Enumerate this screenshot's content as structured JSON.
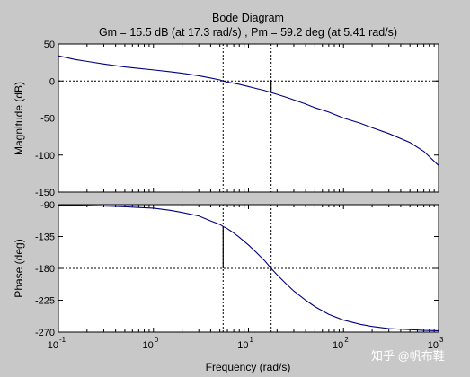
{
  "title": "Bode Diagram",
  "subtitle": "Gm = 15.5 dB (at 17.3 rad/s) ,  Pm = 59.2 deg (at 5.41 rad/s)",
  "watermark": "知乎 @帆布鞋",
  "colors": {
    "figure_bg": "#c8c8c8",
    "axes_bg": "#ffffff",
    "curve": "#000080",
    "marker": "#000000"
  },
  "chart_data": [
    {
      "type": "line",
      "name": "magnitude",
      "xlabel": "",
      "ylabel": "Magnitude (dB)",
      "xscale": "log",
      "xlim": [
        0.1,
        1000
      ],
      "ylim": [
        -150,
        50
      ],
      "yticks": [
        50,
        0,
        -50,
        -100,
        -150
      ],
      "ytick_labels": [
        "50",
        "0",
        "-50",
        "-100",
        "-150"
      ],
      "grid": false,
      "series": [
        {
          "x": [
            0.1,
            0.15,
            0.2,
            0.3,
            0.5,
            0.7,
            1,
            1.5,
            2,
            3,
            4,
            5,
            5.41,
            6,
            7,
            8,
            10,
            12,
            15,
            17.3,
            20,
            25,
            30,
            40,
            50,
            70,
            100,
            150,
            200,
            300,
            500,
            700,
            1000
          ],
          "y": [
            34,
            29,
            26.5,
            23,
            19,
            17,
            15,
            12.5,
            10.5,
            7,
            4,
            1.5,
            0,
            -1.5,
            -3,
            -4.5,
            -7.5,
            -10,
            -13,
            -15.5,
            -18,
            -22,
            -25.5,
            -31,
            -36,
            -42,
            -50,
            -57,
            -63,
            -71,
            -83,
            -95,
            -114
          ]
        }
      ],
      "reference_lines": [
        {
          "kind": "horizontal",
          "y": 0,
          "style": "dotted"
        },
        {
          "kind": "vertical",
          "x": 5.41,
          "style": "dotted"
        },
        {
          "kind": "vertical",
          "x": 17.3,
          "style": "dotted"
        },
        {
          "kind": "margin_marker",
          "x": 17.3,
          "from": 0,
          "to": -15.5
        }
      ]
    },
    {
      "type": "line",
      "name": "phase",
      "xlabel": "Frequency  (rad/s)",
      "ylabel": "Phase (deg)",
      "xscale": "log",
      "xlim": [
        0.1,
        1000
      ],
      "ylim": [
        -270,
        -90
      ],
      "yticks": [
        -90,
        -135,
        -180,
        -225,
        -270
      ],
      "ytick_labels": [
        "-90",
        "-135",
        "-180",
        "-225",
        "-270"
      ],
      "xtick_exponents": [
        "-1",
        "0",
        "1",
        "2",
        "3"
      ],
      "xtick_base": "10",
      "grid": false,
      "series": [
        {
          "x": [
            0.1,
            0.2,
            0.3,
            0.5,
            0.7,
            1,
            1.5,
            2,
            3,
            4,
            5,
            5.41,
            6,
            7,
            8,
            10,
            12,
            15,
            17.3,
            20,
            25,
            30,
            40,
            50,
            70,
            100,
            150,
            200,
            300,
            500,
            700,
            1000
          ],
          "y": [
            -91,
            -91.5,
            -92,
            -93,
            -94,
            -95,
            -98,
            -101,
            -106,
            -113,
            -118,
            -120.8,
            -124,
            -130,
            -136,
            -147,
            -157,
            -170,
            -180,
            -189,
            -202,
            -212,
            -225,
            -234,
            -245,
            -253,
            -259,
            -262,
            -265,
            -266.5,
            -267.5,
            -268
          ]
        }
      ],
      "reference_lines": [
        {
          "kind": "horizontal",
          "y": -180,
          "style": "dotted"
        },
        {
          "kind": "vertical",
          "x": 5.41,
          "style": "dotted"
        },
        {
          "kind": "vertical",
          "x": 17.3,
          "style": "dotted"
        },
        {
          "kind": "margin_marker",
          "x": 5.41,
          "from": -180,
          "to": -120.8
        }
      ]
    }
  ]
}
